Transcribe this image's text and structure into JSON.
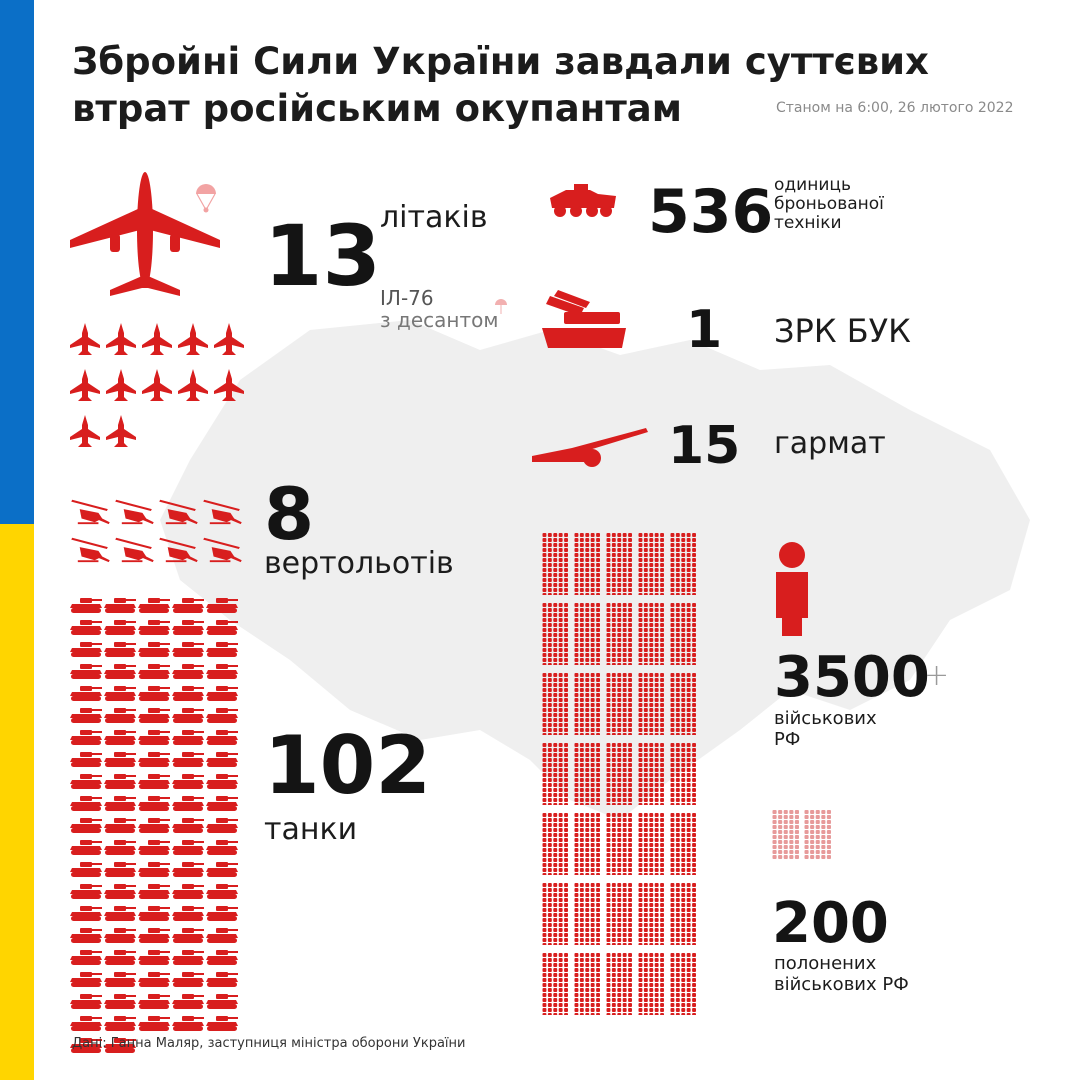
{
  "colors": {
    "accent": "#d81e1e",
    "flag_blue": "#0b6fc7",
    "flag_yellow": "#ffd500",
    "map": "#efefef"
  },
  "header": {
    "title_line1": "Збройні Сили України завдали суттєвих",
    "title_line2": "втрат російським окупантам",
    "as_of": "Станом на 6:00, 26 лютого 2022"
  },
  "stats": {
    "planes": {
      "value": "13",
      "label": "літаків",
      "note_line1": "ІЛ-76",
      "note_line2": "з десантом",
      "icon": "transport-plane-icon",
      "fighter_count": 12
    },
    "helicopters": {
      "value": "8",
      "label": "вертольотів",
      "icon_count": 8
    },
    "tanks": {
      "value": "102",
      "label": "танки",
      "icon_count": 102
    },
    "armored": {
      "value": "536",
      "label_line1": "одиниць",
      "label_line2": "броньованої",
      "label_line3": "техніки",
      "icon": "armored-vehicle-icon"
    },
    "buk": {
      "value": "1",
      "label": "ЗРК БУК",
      "icon": "sam-launcher-icon"
    },
    "guns": {
      "value": "15",
      "label": "гармат",
      "icon": "howitzer-icon"
    },
    "soldiers": {
      "value": "3500",
      "plus": "+",
      "label_line1": "військових",
      "label_line2": "РФ",
      "icon": "soldier-icon"
    },
    "captured": {
      "value": "200",
      "label_line1": "полонених",
      "label_line2": "військових РФ"
    }
  },
  "footer": {
    "source": "Дані: Ганна Маляр, заступниця міністра оборони України"
  }
}
